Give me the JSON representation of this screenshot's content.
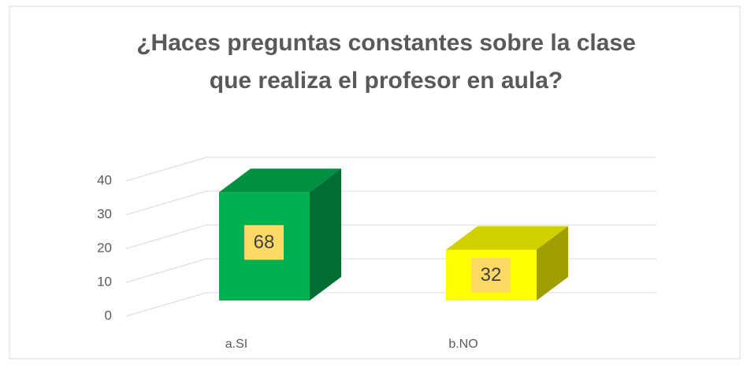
{
  "chart_data": {
    "type": "bar3d",
    "title": "¿Haces preguntas constantes sobre la clase que realiza el profesor en aula?",
    "categories": [
      "a.SI",
      "b.NO"
    ],
    "values": [
      32,
      15
    ],
    "percentages": [
      68,
      32
    ],
    "colors": [
      "#00b050",
      "#ffff00"
    ],
    "ylim": [
      0,
      40
    ],
    "yticks": [
      0,
      10,
      20,
      30,
      40
    ],
    "grid": true
  }
}
